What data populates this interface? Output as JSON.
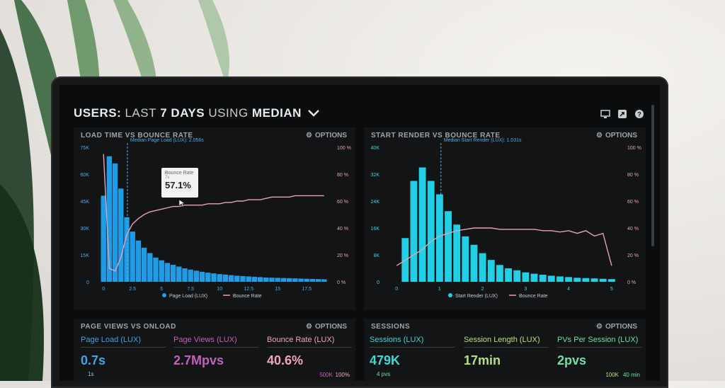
{
  "header": {
    "title_bold1": "USERS:",
    "title_light1": "LAST",
    "title_bold2": "7 DAYS",
    "title_light2": "USING",
    "title_bold3": "MEDIAN",
    "chevron_icon": "chevron-down-icon",
    "icons": [
      "monitor-icon",
      "share-icon",
      "help-icon"
    ]
  },
  "panels": {
    "load_time": {
      "title": "LOAD TIME VS BOUNCE RATE",
      "options_label": "OPTIONS",
      "median_label": "Median Page Load (LUX): 2.056s",
      "tooltip": {
        "title": "Bounce Rate",
        "sub": "7s",
        "value": "57.1%"
      },
      "legend_a": "Page Load (LUX)",
      "legend_b": "Bounce Rate"
    },
    "start_render": {
      "title": "START RENDER VS BOUNCE RATE",
      "options_label": "OPTIONS",
      "median_label": "Median Start Render (LUX): 1.031s",
      "legend_a": "Start Render (LUX)",
      "legend_b": "Bounce Rate"
    },
    "page_views": {
      "title": "PAGE VIEWS VS ONLOAD",
      "options_label": "OPTIONS",
      "metrics": [
        {
          "label": "Page Load (LUX)",
          "value": "0.7s",
          "sub": "1s",
          "color": "#3ea6e6"
        },
        {
          "label": "Page Views (LUX)",
          "value": "2.7Mpvs",
          "sub": "",
          "color": "#c062b8"
        },
        {
          "label": "Bounce Rate (LUX)",
          "value": "40.6%",
          "sub": "",
          "color": "#f0a5bd"
        }
      ],
      "corner_a": "500K",
      "corner_b": "100%"
    },
    "sessions": {
      "title": "SESSIONS",
      "options_label": "OPTIONS",
      "metrics": [
        {
          "label": "Sessions (LUX)",
          "value": "479K",
          "sub": "4 pvs",
          "color": "#3fd6d6"
        },
        {
          "label": "Session Length (LUX)",
          "value": "17min",
          "sub": "",
          "color": "#b7e07a"
        },
        {
          "label": "PVs Per Session (LUX)",
          "value": "2pvs",
          "sub": "",
          "color": "#72e0a0"
        }
      ],
      "corner_a": "100K",
      "corner_b": "40 min"
    }
  },
  "colors": {
    "bar_blue": "#1e9de6",
    "bar_cyan": "#21cfe6",
    "bounce_line": "#e6a2b4",
    "median_line": "#4ab0e8"
  },
  "chart_data": [
    {
      "type": "bar",
      "title": "LOAD TIME VS BOUNCE RATE",
      "x_ticks": [
        "0",
        "2.5",
        "5",
        "7.5",
        "10",
        "12.5",
        "15",
        "17.5"
      ],
      "y_left_ticks": [
        "0",
        "15K",
        "30K",
        "45K",
        "60K",
        "75K"
      ],
      "y_right_ticks": [
        "0 %",
        "20 %",
        "40 %",
        "60 %",
        "80 %",
        "100 %"
      ],
      "ylim": [
        0,
        75000
      ],
      "xlim": [
        -0.5,
        19.5
      ],
      "median_x": 2.056,
      "bar_width": 0.5,
      "x": [
        0,
        0.5,
        1,
        1.5,
        2,
        2.5,
        3,
        3.5,
        4,
        4.5,
        5,
        5.5,
        6,
        6.5,
        7,
        7.5,
        8,
        8.5,
        9,
        9.5,
        10,
        10.5,
        11,
        11.5,
        12,
        12.5,
        13,
        13.5,
        14,
        14.5,
        15,
        15.5,
        16,
        16.5,
        17,
        17.5,
        18,
        18.5,
        19
      ],
      "series": [
        {
          "name": "Page Load (LUX)",
          "values": [
            48000,
            70000,
            66000,
            52000,
            36000,
            28000,
            23000,
            19000,
            16000,
            13500,
            12000,
            10500,
            9500,
            8500,
            7500,
            6800,
            6200,
            5600,
            5100,
            4700,
            4300,
            4000,
            3700,
            3400,
            3200,
            3000,
            2800,
            2600,
            2400,
            2300,
            2200,
            2100,
            2000,
            1900,
            1800,
            1700,
            1600,
            1500,
            1400
          ]
        },
        {
          "name": "Bounce Rate",
          "x": [
            0,
            0.5,
            1,
            1.5,
            2,
            2.5,
            3,
            3.5,
            4,
            4.5,
            5,
            5.5,
            6,
            6.5,
            7,
            7.5,
            8,
            8.5,
            9,
            9.5,
            10,
            10.5,
            11,
            11.5,
            12,
            12.5,
            13,
            13.5,
            14,
            14.5,
            15,
            15.5,
            16,
            16.5,
            17,
            17.5,
            18,
            18.5,
            19
          ],
          "values": [
            95,
            10,
            8,
            18,
            35,
            43,
            47,
            50,
            52,
            53,
            54,
            55,
            56,
            56,
            57,
            57,
            57,
            57,
            58,
            58,
            58,
            59,
            59,
            60,
            60,
            61,
            61,
            61,
            62,
            63,
            63,
            63,
            63,
            64,
            64,
            64,
            64,
            64,
            64
          ]
        }
      ]
    },
    {
      "type": "bar",
      "title": "START RENDER VS BOUNCE RATE",
      "x_ticks": [
        "0",
        "1",
        "2",
        "3",
        "4",
        "5"
      ],
      "y_left_ticks": [
        "0",
        "8K",
        "16K",
        "24K",
        "32K",
        "40K"
      ],
      "y_right_ticks": [
        "0 %",
        "20 %",
        "40 %",
        "60 %",
        "80 %",
        "100 %"
      ],
      "ylim": [
        0,
        40000
      ],
      "xlim": [
        -0.2,
        5.2
      ],
      "median_x": 1.031,
      "bar_width": 0.18,
      "x": [
        0.2,
        0.4,
        0.6,
        0.8,
        1.0,
        1.2,
        1.4,
        1.6,
        1.8,
        2.0,
        2.2,
        2.4,
        2.6,
        2.8,
        3.0,
        3.2,
        3.4,
        3.6,
        3.8,
        4.0,
        4.2,
        4.4,
        4.6,
        4.8,
        5.0
      ],
      "series": [
        {
          "name": "Start Render (LUX)",
          "values": [
            13000,
            30000,
            34000,
            30000,
            26000,
            21000,
            17000,
            13500,
            11000,
            8500,
            6500,
            5000,
            4000,
            3400,
            2800,
            2400,
            2100,
            1800,
            1600,
            1400,
            1200,
            1100,
            1000,
            900,
            800
          ]
        },
        {
          "name": "Bounce Rate",
          "x": [
            0,
            0.2,
            0.4,
            0.6,
            0.8,
            1.0,
            1.2,
            1.4,
            1.6,
            1.8,
            2.0,
            2.2,
            2.4,
            2.6,
            2.8,
            3.0,
            3.2,
            3.4,
            3.6,
            3.8,
            4.0,
            4.2,
            4.4,
            4.6,
            4.8,
            5.0
          ],
          "values": [
            12,
            16,
            20,
            24,
            30,
            34,
            36,
            38,
            39,
            40,
            40,
            40,
            39,
            39,
            39,
            39,
            39,
            38,
            38,
            37,
            38,
            36,
            38,
            34,
            36,
            12
          ]
        }
      ]
    }
  ]
}
